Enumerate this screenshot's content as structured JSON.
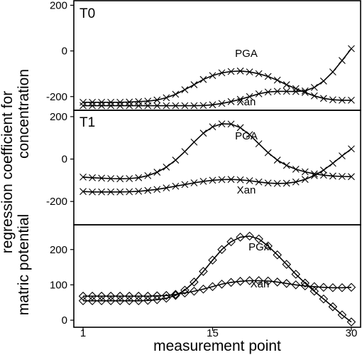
{
  "chart_data": {
    "type": "line",
    "xlabel": "measurement point",
    "ylabel_lines": [
      "regression coefficient for",
      "concentration",
      "matric potential"
    ],
    "x_ticks": [
      1,
      15,
      30
    ],
    "xlim": [
      0,
      31
    ],
    "panels": [
      {
        "label": "T0",
        "ylim": [
          -260,
          220
        ],
        "y_ticks": [
          200,
          0,
          -200
        ],
        "marker": "x",
        "series": [
          {
            "name": "PGA",
            "x": [
              1,
              2,
              3,
              4,
              5,
              6,
              7,
              8,
              9,
              10,
              11,
              12,
              13,
              14,
              15,
              16,
              17,
              18,
              19,
              20,
              21,
              22,
              23,
              24,
              25,
              26,
              27,
              28,
              29,
              30
            ],
            "values": [
              -225,
              -225,
              -225,
              -225,
              -225,
              -224,
              -222,
              -220,
              -215,
              -205,
              -190,
              -170,
              -148,
              -125,
              -108,
              -96,
              -90,
              -88,
              -92,
              -100,
              -112,
              -128,
              -148,
              -165,
              -182,
              -197,
              -208,
              -214,
              -216,
              -216
            ]
          },
          {
            "name": "Xan",
            "x": [
              1,
              2,
              3,
              4,
              5,
              6,
              7,
              8,
              9,
              10,
              11,
              12,
              13,
              14,
              15,
              16,
              17,
              18,
              19,
              20,
              21,
              22,
              23,
              24,
              25,
              26,
              27,
              28,
              29,
              30
            ],
            "values": [
              -240,
              -240,
              -240,
              -240,
              -240,
              -240,
              -240,
              -240,
              -240,
              -240,
              -240,
              -240,
              -240,
              -239,
              -236,
              -230,
              -222,
              -212,
              -200,
              -188,
              -180,
              -177,
              -177,
              -178,
              -175,
              -160,
              -132,
              -92,
              -42,
              10
            ]
          }
        ]
      },
      {
        "label": "T1",
        "ylim": [
          -310,
          230
        ],
        "y_ticks": [
          200,
          0,
          -200
        ],
        "marker": "x",
        "series": [
          {
            "name": "PGA",
            "x": [
              1,
              2,
              3,
              4,
              5,
              6,
              7,
              8,
              9,
              10,
              11,
              12,
              13,
              14,
              15,
              16,
              17,
              18,
              19,
              20,
              21,
              22,
              23,
              24,
              25,
              26,
              27,
              28,
              29,
              30
            ],
            "values": [
              -85,
              -88,
              -90,
              -92,
              -93,
              -92,
              -88,
              -78,
              -62,
              -38,
              -5,
              35,
              80,
              122,
              152,
              166,
              165,
              148,
              115,
              72,
              30,
              -5,
              -30,
              -48,
              -60,
              -70,
              -76,
              -80,
              -82,
              -83
            ]
          },
          {
            "name": "Xan",
            "x": [
              1,
              2,
              3,
              4,
              5,
              6,
              7,
              8,
              9,
              10,
              11,
              12,
              13,
              14,
              15,
              16,
              17,
              18,
              19,
              20,
              21,
              22,
              23,
              24,
              25,
              26,
              27,
              28,
              29,
              30
            ],
            "values": [
              -153,
              -155,
              -155,
              -155,
              -155,
              -154,
              -152,
              -148,
              -143,
              -136,
              -128,
              -120,
              -112,
              -105,
              -100,
              -97,
              -96,
              -98,
              -102,
              -108,
              -113,
              -115,
              -114,
              -108,
              -96,
              -78,
              -52,
              -20,
              15,
              48
            ]
          }
        ]
      },
      {
        "label": "",
        "ylim": [
          -20,
          270
        ],
        "y_ticks": [
          200,
          100,
          0
        ],
        "marker": "diamond",
        "series": [
          {
            "name": "PGA",
            "x": [
              1,
              2,
              3,
              4,
              5,
              6,
              7,
              8,
              9,
              10,
              11,
              12,
              13,
              14,
              15,
              16,
              17,
              18,
              19,
              20,
              21,
              22,
              23,
              24,
              25,
              26,
              27,
              28,
              29,
              30
            ],
            "values": [
              55,
              55,
              55,
              55,
              55,
              55,
              55,
              56,
              58,
              62,
              70,
              85,
              108,
              138,
              170,
              200,
              222,
              235,
              238,
              230,
              210,
              185,
              158,
              130,
              105,
              82,
              60,
              38,
              15,
              -5
            ]
          },
          {
            "name": "Xan",
            "x": [
              1,
              2,
              3,
              4,
              5,
              6,
              7,
              8,
              9,
              10,
              11,
              12,
              13,
              14,
              15,
              16,
              17,
              18,
              19,
              20,
              21,
              22,
              23,
              24,
              25,
              26,
              27,
              28,
              29,
              30
            ],
            "values": [
              68,
              68,
              68,
              68,
              68,
              68,
              68,
              68,
              69,
              70,
              73,
              77,
              82,
              88,
              95,
              102,
              107,
              110,
              112,
              112,
              111,
              108,
              104,
              100,
              97,
              95,
              93,
              92,
              92,
              93
            ]
          }
        ]
      }
    ]
  }
}
